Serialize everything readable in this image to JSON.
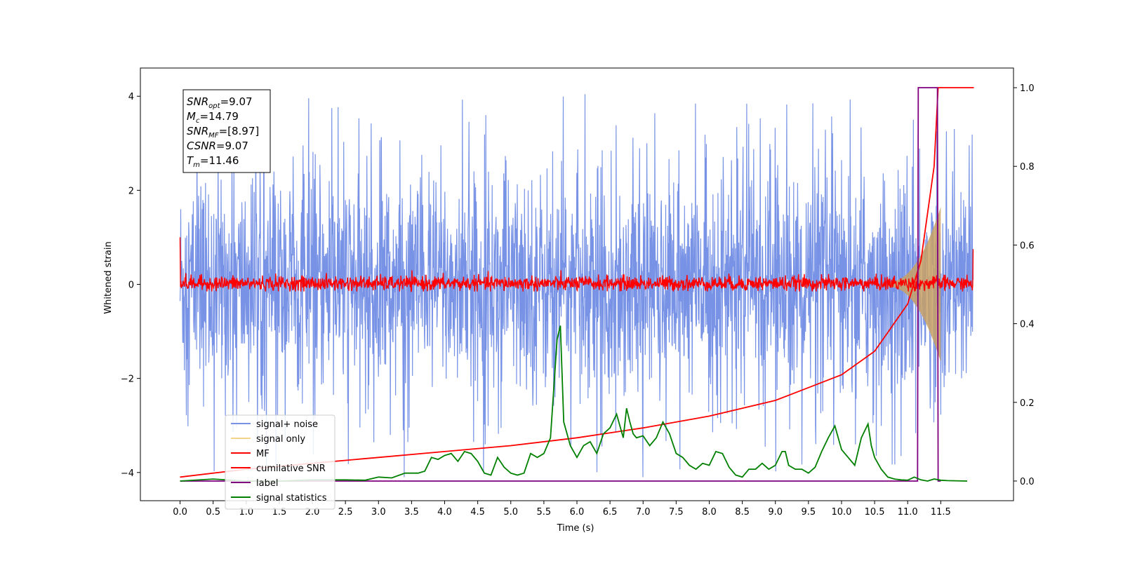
{
  "chart_data": {
    "type": "line",
    "xlabel": "Time (s)",
    "ylabel": "Whitened strain",
    "xlim": [
      -0.6,
      12.6
    ],
    "ylim": [
      -4.6,
      4.6
    ],
    "y2lim": [
      -0.05,
      1.05
    ],
    "xticks": [
      0.0,
      0.5,
      1.0,
      1.5,
      2.0,
      2.5,
      3.0,
      3.5,
      4.0,
      4.5,
      5.0,
      5.5,
      6.0,
      6.5,
      7.0,
      7.5,
      8.0,
      8.5,
      9.0,
      9.5,
      10.0,
      10.5,
      11.0,
      11.5
    ],
    "xtick_labels": [
      "0.0",
      "0.5",
      "1.0",
      "1.5",
      "2.0",
      "2.5",
      "3.0",
      "3.5",
      "4.0",
      "4.5",
      "5.0",
      "5.5",
      "6.0",
      "6.5",
      "7.0",
      "7.5",
      "8.0",
      "8.5",
      "9.0",
      "9.5",
      "10.0",
      "10.5",
      "11.0",
      "11.5"
    ],
    "yticks": [
      -4,
      -2,
      0,
      2,
      4
    ],
    "ytick_labels": [
      "−4",
      "−2",
      "0",
      "2",
      "4"
    ],
    "y2ticks": [
      0.0,
      0.2,
      0.4,
      0.6,
      0.8,
      1.0
    ],
    "y2tick_labels": [
      "0.0",
      "0.2",
      "0.4",
      "0.6",
      "0.8",
      "1.0"
    ],
    "legend": {
      "position": "lower left",
      "entries": [
        {
          "label": "signal+ noise",
          "color": "#7893e6"
        },
        {
          "label": "signal only",
          "color": "#f5d38a"
        },
        {
          "label": "MF",
          "color": "#ff0000"
        },
        {
          "label": "cumilative SNR",
          "color": "#ff0000"
        },
        {
          "label": "label",
          "color": "#800080"
        },
        {
          "label": "signal statistics",
          "color": "#008000"
        }
      ]
    },
    "info_box": [
      {
        "main": "SNR",
        "sub": "opt",
        "rest": "=9.07"
      },
      {
        "main": "M",
        "sub": "c",
        "rest": "=14.79"
      },
      {
        "main": "SNR",
        "sub": "MF",
        "rest": "=[8.97]"
      },
      {
        "main": "CSNR",
        "sub": "",
        "rest": "=9.07"
      },
      {
        "main": "T",
        "sub": "m",
        "rest": "=11.46"
      }
    ],
    "series": [
      {
        "name": "signal+ noise",
        "axis": "left",
        "color": "#7893e6",
        "amplitude_envelope": [
          -4.1,
          4.2
        ],
        "x_range": [
          0.0,
          11.99
        ]
      },
      {
        "name": "signal only",
        "axis": "left",
        "color": "#c8a064",
        "x_range": [
          10.7,
          11.5
        ],
        "peak_amplitude": 1.6
      },
      {
        "name": "MF",
        "axis": "left",
        "color": "#ff0000",
        "x_range": [
          0.0,
          11.99
        ],
        "band": [
          -0.15,
          0.3
        ]
      },
      {
        "name": "cumilative SNR",
        "axis": "right",
        "x": [
          0.0,
          1.0,
          2.0,
          3.0,
          4.0,
          5.0,
          6.0,
          7.0,
          8.0,
          9.0,
          10.0,
          10.5,
          11.0,
          11.2,
          11.4,
          11.46,
          12.0
        ],
        "y": [
          0.01,
          0.03,
          0.045,
          0.06,
          0.075,
          0.09,
          0.11,
          0.135,
          0.165,
          0.205,
          0.27,
          0.33,
          0.45,
          0.56,
          0.8,
          1.0,
          1.0
        ]
      },
      {
        "name": "label",
        "axis": "right",
        "x": [
          0.0,
          11.15,
          11.16,
          11.45,
          11.46,
          11.5
        ],
        "y": [
          0.0,
          0.0,
          1.0,
          1.0,
          0.0,
          0.0
        ]
      },
      {
        "name": "signal statistics",
        "axis": "right",
        "x": [
          0.0,
          0.5,
          1.0,
          1.5,
          2.0,
          2.5,
          2.8,
          3.0,
          3.2,
          3.4,
          3.6,
          3.7,
          3.8,
          3.9,
          4.0,
          4.1,
          4.2,
          4.3,
          4.4,
          4.5,
          4.6,
          4.7,
          4.8,
          4.9,
          5.0,
          5.1,
          5.2,
          5.3,
          5.4,
          5.5,
          5.6,
          5.7,
          5.75,
          5.8,
          5.85,
          5.9,
          6.0,
          6.1,
          6.2,
          6.3,
          6.4,
          6.5,
          6.6,
          6.7,
          6.75,
          6.8,
          6.85,
          6.9,
          7.0,
          7.1,
          7.2,
          7.3,
          7.4,
          7.5,
          7.6,
          7.7,
          7.8,
          7.9,
          8.0,
          8.1,
          8.2,
          8.3,
          8.4,
          8.5,
          8.6,
          8.7,
          8.8,
          8.9,
          9.0,
          9.1,
          9.15,
          9.2,
          9.3,
          9.4,
          9.5,
          9.6,
          9.7,
          9.8,
          9.9,
          10.0,
          10.1,
          10.2,
          10.3,
          10.4,
          10.45,
          10.5,
          10.6,
          10.7,
          10.8,
          10.9,
          11.0,
          11.1,
          11.2,
          11.3,
          11.4,
          11.5,
          11.6,
          11.9
        ],
        "y": [
          0.0,
          0.005,
          0.0,
          0.0,
          0.003,
          0.003,
          0.002,
          0.01,
          0.008,
          0.02,
          0.02,
          0.025,
          0.06,
          0.055,
          0.065,
          0.07,
          0.05,
          0.075,
          0.07,
          0.05,
          0.02,
          0.015,
          0.06,
          0.035,
          0.02,
          0.015,
          0.02,
          0.07,
          0.06,
          0.07,
          0.11,
          0.36,
          0.395,
          0.15,
          0.12,
          0.09,
          0.06,
          0.09,
          0.1,
          0.07,
          0.12,
          0.135,
          0.17,
          0.11,
          0.185,
          0.15,
          0.12,
          0.11,
          0.115,
          0.09,
          0.11,
          0.15,
          0.12,
          0.07,
          0.06,
          0.04,
          0.03,
          0.045,
          0.04,
          0.075,
          0.07,
          0.035,
          0.015,
          0.01,
          0.03,
          0.03,
          0.045,
          0.03,
          0.04,
          0.075,
          0.075,
          0.04,
          0.03,
          0.03,
          0.02,
          0.035,
          0.075,
          0.11,
          0.14,
          0.08,
          0.06,
          0.04,
          0.11,
          0.145,
          0.09,
          0.06,
          0.03,
          0.01,
          0.005,
          0.003,
          0.002,
          0.01,
          0.003,
          0.0,
          0.005,
          0.002,
          0.001,
          0.0
        ]
      }
    ]
  }
}
